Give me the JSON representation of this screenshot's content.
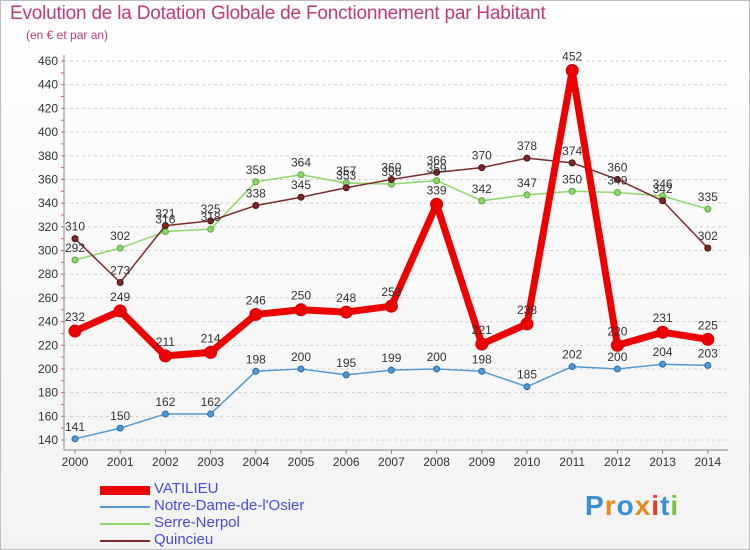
{
  "title": "Evolution de la Dotation Globale de Fonctionnement par Habitant",
  "subtitle": "(en € et par an)",
  "logo": "Proxiti",
  "chart_data": {
    "type": "line",
    "x": [
      "2000",
      "2001",
      "2002",
      "2003",
      "2004",
      "2005",
      "2006",
      "2007",
      "2008",
      "2009",
      "2010",
      "2011",
      "2012",
      "2013",
      "2014"
    ],
    "ylim": [
      140,
      460
    ],
    "yticks": [
      140,
      160,
      180,
      200,
      220,
      240,
      260,
      280,
      300,
      320,
      340,
      360,
      380,
      400,
      420,
      440,
      460
    ],
    "grid": "horizontal dashed",
    "legend_position": "bottom-left",
    "series": [
      {
        "name": "VATILIEU",
        "color": "#ee0000",
        "values": [
          232,
          249,
          211,
          214,
          246,
          250,
          248,
          253,
          339,
          221,
          238,
          452,
          220,
          231,
          225
        ]
      },
      {
        "name": "Notre-Dame-de-l'Osier",
        "color": "#4f9ad6",
        "values": [
          141,
          150,
          162,
          162,
          198,
          200,
          195,
          199,
          200,
          198,
          185,
          202,
          200,
          204,
          203
        ]
      },
      {
        "name": "Serre-Nerpol",
        "color": "#8dd86a",
        "values": [
          292,
          302,
          316,
          318,
          358,
          364,
          357,
          356,
          359,
          342,
          347,
          350,
          349,
          346,
          335
        ]
      },
      {
        "name": "Quincieu",
        "color": "#7a2a2a",
        "values": [
          310,
          273,
          321,
          325,
          338,
          345,
          353,
          360,
          366,
          370,
          378,
          374,
          360,
          342,
          302
        ]
      }
    ]
  }
}
